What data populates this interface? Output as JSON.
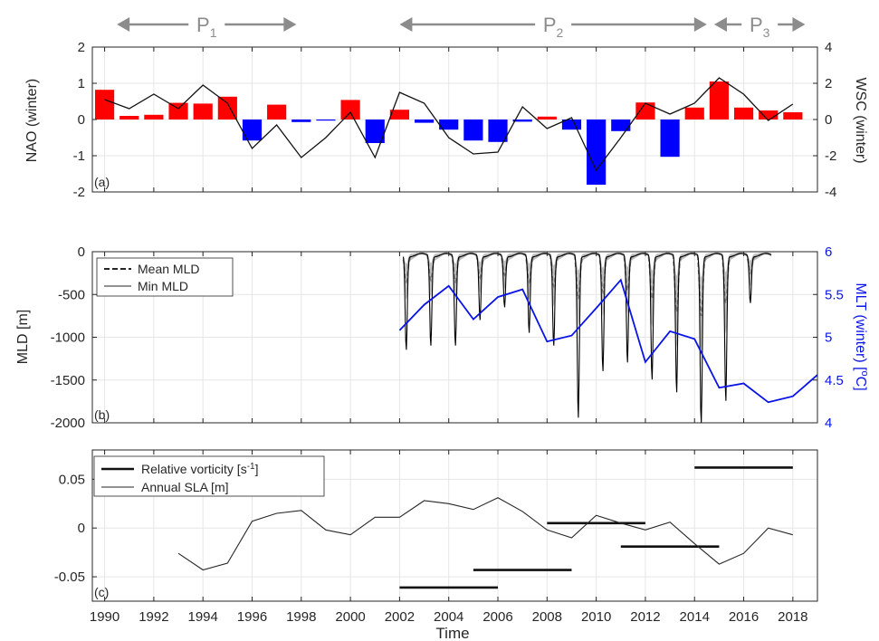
{
  "periods": [
    {
      "label": "P",
      "sub": "1",
      "start": 1990.5,
      "end": 1997.8
    },
    {
      "label": "P",
      "sub": "2",
      "start": 2002.0,
      "end": 2014.5
    },
    {
      "label": "P",
      "sub": "3",
      "start": 2014.8,
      "end": 2018.5
    }
  ],
  "xlabel": "Time",
  "x_ticks": [
    1990,
    1992,
    1994,
    1996,
    1998,
    2000,
    2002,
    2004,
    2006,
    2008,
    2010,
    2012,
    2014,
    2016,
    2018
  ],
  "chart_data": [
    {
      "type": "bar",
      "panel": "(a)",
      "ylabel": "NAO (winter)",
      "ylabel_right": "WSC (winter)",
      "xlim": [
        1989.5,
        2019
      ],
      "ylim": [
        -2,
        2
      ],
      "ylim_right": [
        -4,
        4
      ],
      "y_ticks": [
        -2,
        -1,
        0,
        1,
        2
      ],
      "y_ticks_right": [
        -4,
        -2,
        0,
        2,
        4
      ],
      "grid": true,
      "positive_color": "#ff0000",
      "negative_color": "#0000ff",
      "nao_bars": {
        "x": [
          1990,
          1991,
          1992,
          1993,
          1994,
          1995,
          1996,
          1997,
          1998,
          1999,
          2000,
          2001,
          2002,
          2003,
          2004,
          2005,
          2006,
          2007,
          2008,
          2009,
          2010,
          2011,
          2012,
          2013,
          2014,
          2015,
          2016,
          2017,
          2018
        ],
        "values": [
          0.82,
          0.1,
          0.13,
          0.46,
          0.44,
          0.63,
          -0.58,
          0.41,
          -0.07,
          -0.03,
          0.54,
          -0.65,
          0.27,
          -0.09,
          -0.28,
          -0.58,
          -0.62,
          -0.06,
          0.08,
          -0.28,
          -1.8,
          -0.32,
          0.47,
          -1.03,
          0.33,
          1.05,
          0.33,
          0.25,
          0.2
        ]
      },
      "wsc_line": {
        "x": [
          1990,
          1991,
          1992,
          1993,
          1994,
          1995,
          1996,
          1997,
          1998,
          1999,
          2000,
          2001,
          2002,
          2003,
          2004,
          2005,
          2006,
          2007,
          2008,
          2009,
          2010,
          2011,
          2012,
          2013,
          2014,
          2015,
          2016,
          2017,
          2018
        ],
        "values": [
          1.1,
          0.6,
          1.4,
          0.6,
          1.9,
          0.9,
          -1.6,
          -0.3,
          -2.1,
          -1.0,
          0.4,
          -2.1,
          1.5,
          0.9,
          -1.0,
          -1.9,
          -1.8,
          0.7,
          -0.5,
          0.1,
          -2.8,
          -1.0,
          0.9,
          0.3,
          0.9,
          2.3,
          1.4,
          -0.05,
          0.85
        ]
      }
    },
    {
      "type": "line",
      "panel": "(b)",
      "ylabel": "MLD [m]",
      "ylabel_right": "MLT (winter) [oC]",
      "ylabel_right_parts": {
        "pre": "MLT (winter) [",
        "sup": "o",
        "post": "C]"
      },
      "xlim": [
        1989.5,
        2019
      ],
      "ylim": [
        -2000,
        0
      ],
      "ylim_right": [
        4,
        6
      ],
      "y_ticks": [
        -2000,
        -1500,
        -1000,
        -500,
        0
      ],
      "y_ticks_right": [
        4,
        4.5,
        5,
        5.5,
        6
      ],
      "grid": true,
      "legend": [
        "Mean MLD",
        "Min MLD"
      ],
      "legend_position": "top-left",
      "mld_color": "#000000",
      "mlt_color": "#0a14e6",
      "series_min_mld": {
        "name": "Min MLD",
        "winter_minima": [
          -1100,
          -1050,
          -1050,
          -750,
          -600,
          -900,
          -1050,
          -1900,
          -1350,
          -1250,
          -1450,
          -1600,
          -2000,
          -1700,
          -550
        ]
      },
      "series_mean_mld": {
        "name": "Mean MLD",
        "winter_minima": [
          -300,
          -280,
          -300,
          -250,
          -220,
          -300,
          -350,
          -500,
          -420,
          -400,
          -500,
          -650,
          -700,
          -550,
          -200
        ]
      },
      "mld_years": [
        2002,
        2003,
        2004,
        2005,
        2006,
        2007,
        2008,
        2009,
        2010,
        2011,
        2012,
        2013,
        2014,
        2015,
        2016,
        2017,
        2018
      ],
      "series_mlt": {
        "x": [
          2002,
          2003,
          2004,
          2005,
          2006,
          2007,
          2008,
          2009,
          2010,
          2011,
          2012,
          2013,
          2014,
          2015,
          2016,
          2017,
          2018,
          2019
        ],
        "values": [
          5.08,
          5.38,
          5.6,
          5.21,
          5.47,
          5.56,
          4.95,
          5.02,
          5.34,
          5.67,
          4.71,
          5.07,
          4.98,
          4.41,
          4.46,
          4.24,
          4.31,
          4.56
        ]
      }
    },
    {
      "type": "line",
      "panel": "(c)",
      "ylabel": "",
      "xlim": [
        1989.5,
        2019
      ],
      "ylim": [
        -0.075,
        0.08
      ],
      "y_ticks": [
        -0.05,
        0,
        0.05
      ],
      "grid": true,
      "legend_position": "top-left",
      "legend": [
        {
          "pre": "Relative vorticity [s",
          "sup": "-1",
          "post": "]"
        },
        {
          "pre": "Annual SLA [m]",
          "sup": "",
          "post": ""
        }
      ],
      "series_sla": {
        "name": "Annual SLA [m]",
        "x": [
          1993,
          1994,
          1995,
          1996,
          1997,
          1998,
          1999,
          2000,
          2001,
          2002,
          2003,
          2004,
          2005,
          2006,
          2007,
          2008,
          2009,
          2010,
          2011,
          2012,
          2013,
          2014,
          2015,
          2016,
          2017,
          2018
        ],
        "values": [
          -0.026,
          -0.043,
          -0.036,
          0.007,
          0.015,
          0.018,
          -0.002,
          -0.007,
          0.011,
          0.011,
          0.028,
          0.025,
          0.019,
          0.031,
          0.017,
          -0.002,
          -0.01,
          0.013,
          0.005,
          -0.002,
          0.006,
          -0.016,
          -0.037,
          -0.026,
          0.0,
          -0.007
        ]
      },
      "series_vorticity": {
        "name": "Relative vorticity",
        "segments": [
          {
            "x0": 2002,
            "x1": 2006,
            "y": -0.061
          },
          {
            "x0": 2005,
            "x1": 2009,
            "y": -0.043
          },
          {
            "x0": 2008,
            "x1": 2012,
            "y": 0.005
          },
          {
            "x0": 2011,
            "x1": 2015,
            "y": -0.019
          },
          {
            "x0": 2014,
            "x1": 2018,
            "y": 0.062
          }
        ]
      }
    }
  ]
}
